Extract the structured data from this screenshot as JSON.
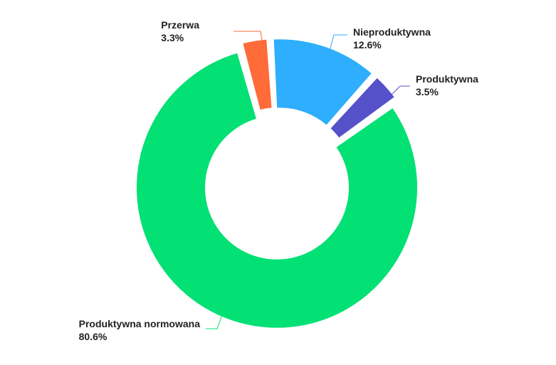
{
  "chart_data": {
    "type": "pie",
    "variant": "donut",
    "start_angle_deg": -3.5,
    "slices": [
      {
        "label": "Nieproduktywna",
        "value_label": "12.6%",
        "value": 12.6,
        "color": "#2EAEFC"
      },
      {
        "label": "Produktywna",
        "value_label": "3.5%",
        "value": 3.5,
        "color": "#5551C9"
      },
      {
        "label": "Produktywna normowana",
        "value_label": "80.6%",
        "value": 80.6,
        "color": "#03E074"
      },
      {
        "label": "Przerwa",
        "value_label": "3.3%",
        "value": 3.3,
        "color": "#FF6B39"
      }
    ],
    "legend": "none",
    "data_labels": "outside-with-leader-lines"
  }
}
